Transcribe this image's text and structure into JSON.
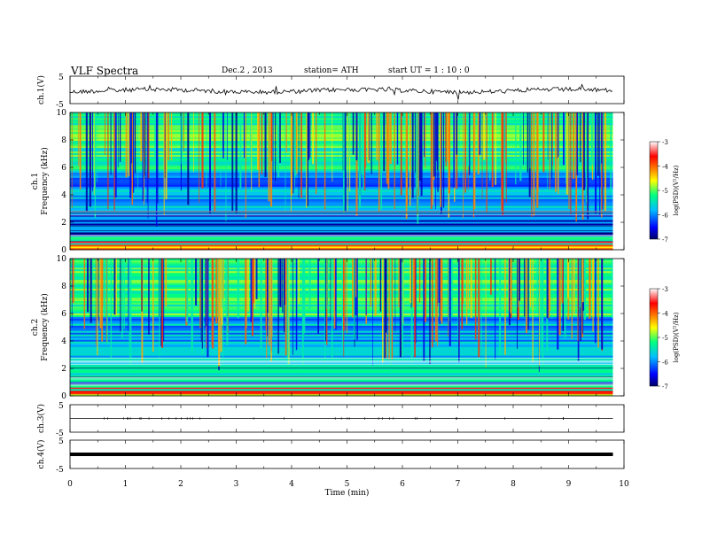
{
  "header": {
    "title": "VLF  Spectra",
    "date": "Dec.2  , 2013",
    "station": "station= ATH",
    "start": "start  UT  =   1  : 10 : 0"
  },
  "colorbar": {
    "label": "log(PSD)(V²/Hz)",
    "ticks": [
      "-3",
      "-4",
      "-5",
      "-6",
      "-7"
    ],
    "colors": [
      "#000066",
      "#0000ff",
      "#00bfff",
      "#00ff80",
      "#ffff00",
      "#ff8000",
      "#ff0000",
      "#ffffff"
    ]
  },
  "chart_data": [
    {
      "type": "line",
      "panel": "ch1",
      "ylabel": "ch.1(V)",
      "ylim": [
        -5,
        5
      ],
      "yticks": [
        "5",
        "-5"
      ],
      "description_level": 0
    },
    {
      "type": "heatmap",
      "panel": "spec1",
      "ylabel_channel": "ch.1",
      "ylabel": "Frequency  (kHz)",
      "ylim": [
        0,
        10
      ],
      "yticks": [
        "0",
        "2",
        "4",
        "6",
        "8",
        "10"
      ],
      "zlim": [
        -7,
        -3
      ]
    },
    {
      "type": "heatmap",
      "panel": "spec2",
      "ylabel_channel": "ch.2",
      "ylabel": "Frequency  (kHz)",
      "ylim": [
        0,
        10
      ],
      "yticks": [
        "0",
        "2",
        "4",
        "6",
        "8",
        "10"
      ],
      "zlim": [
        -7,
        -3
      ]
    },
    {
      "type": "line",
      "panel": "ch3",
      "ylabel": "ch.3(V)",
      "ylim": [
        -5,
        5
      ],
      "yticks": [
        "5",
        "-5"
      ],
      "level": 0
    },
    {
      "type": "line",
      "panel": "ch4",
      "ylabel": "ch.4(V)",
      "ylim": [
        -5,
        5
      ],
      "yticks": [
        "5",
        "-5"
      ],
      "level": 0
    }
  ],
  "xaxis": {
    "label": "Time  (min)",
    "xlim": [
      0,
      10
    ],
    "data_end": 9.8,
    "ticks": [
      "0",
      "1",
      "2",
      "3",
      "4",
      "5",
      "6",
      "7",
      "8",
      "9",
      "10"
    ]
  }
}
